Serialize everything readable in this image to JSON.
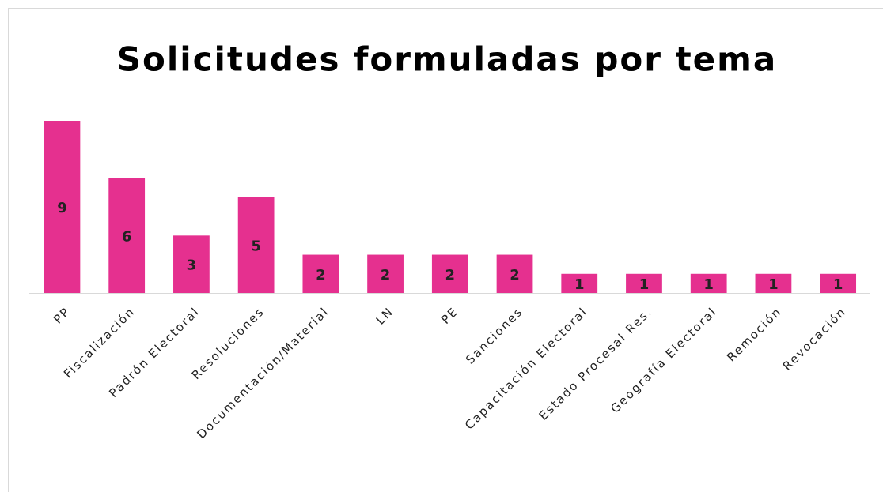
{
  "chart_data": {
    "type": "bar",
    "title": "Solicitudes formuladas por tema",
    "categories": [
      "PP",
      "Fiscalización",
      "Padrón Electoral",
      "Resoluciones",
      "Documentación/Material",
      "LN",
      "PE",
      "Sanciones",
      "Capacitación Electoral",
      "Estado Procesal Res.",
      "Geografía Electoral",
      "Remoción",
      "Revocación"
    ],
    "values": [
      9,
      6,
      3,
      5,
      2,
      2,
      2,
      2,
      1,
      1,
      1,
      1,
      1
    ],
    "color": "#e5308f",
    "ylim": [
      0,
      9
    ]
  }
}
